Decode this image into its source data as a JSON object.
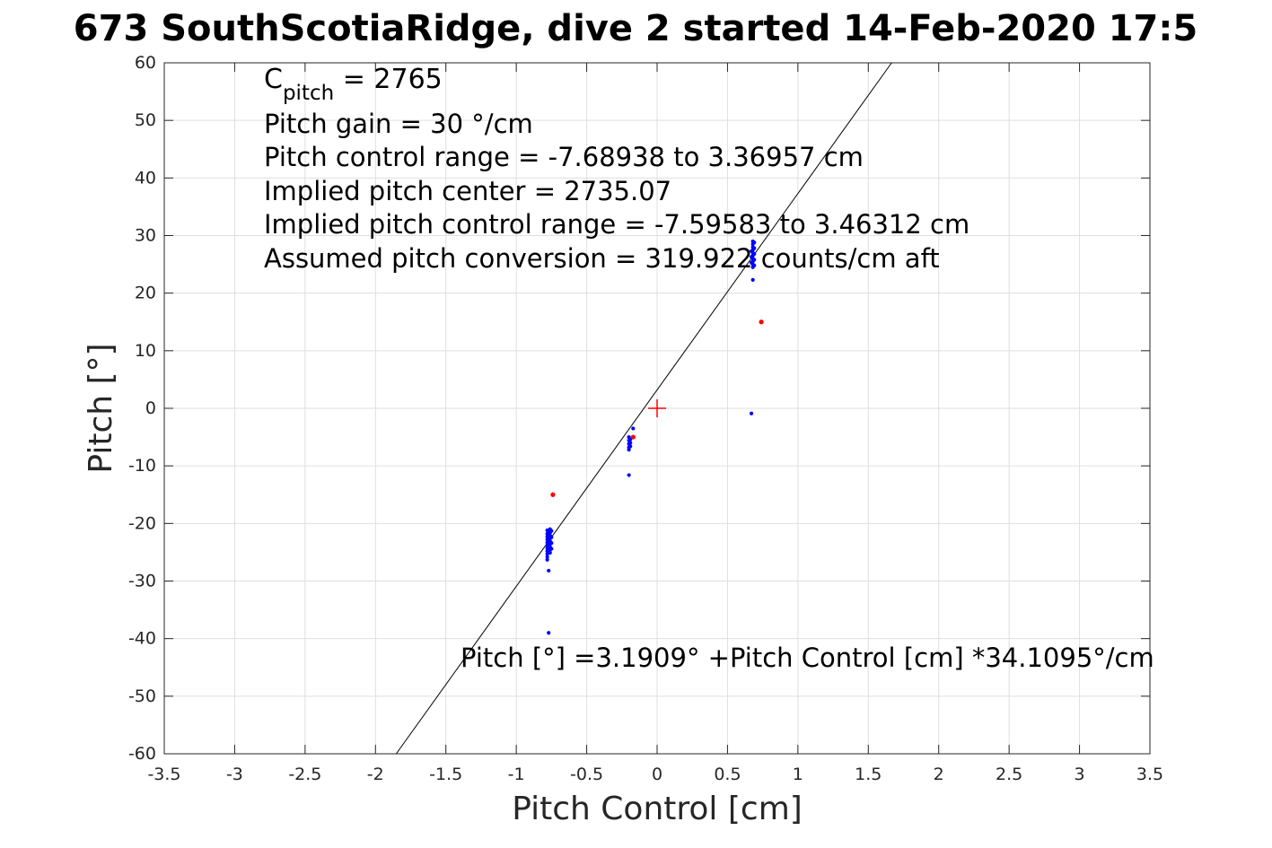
{
  "chart_data": {
    "type": "scatter",
    "title": "673 SouthScotiaRidge, dive 2 started 14-Feb-2020 17:5",
    "xlabel": "Pitch Control [cm]",
    "ylabel": "Pitch [°]",
    "xlim": [
      -3.5,
      3.5
    ],
    "ylim": [
      -60,
      60
    ],
    "xticks": [
      -3.5,
      -3,
      -2.5,
      -2,
      -1.5,
      -1,
      -0.5,
      0,
      0.5,
      1,
      1.5,
      2,
      2.5,
      3,
      3.5
    ],
    "xtick_labels": [
      "-3.5",
      "-3",
      "-2.5",
      "-2",
      "-1.5",
      "-1",
      "-0.5",
      "0",
      "0.5",
      "1",
      "1.5",
      "2",
      "2.5",
      "3",
      "3.5"
    ],
    "yticks": [
      -60,
      -50,
      -40,
      -30,
      -20,
      -10,
      0,
      10,
      20,
      30,
      40,
      50,
      60
    ],
    "ytick_labels": [
      "-60",
      "-50",
      "-40",
      "-30",
      "-20",
      "-10",
      "0",
      "10",
      "20",
      "30",
      "40",
      "50",
      "60"
    ],
    "grid": true,
    "annotations": {
      "c_pitch_main": "C",
      "c_pitch_sub": "pitch",
      "c_pitch_value": " = 2765",
      "line2": "Pitch gain = 30 °/cm",
      "line3": "Pitch control range = -7.68938 to 3.36957 cm",
      "line4": "Implied pitch center = 2735.07",
      "line5": "Implied pitch control range = -7.59583 to 3.46312 cm",
      "line6": "Assumed pitch conversion = 319.922 counts/cm aft",
      "fit_equation": "Pitch [°] =3.1909° +Pitch Control [cm] *34.1095°/cm"
    },
    "fit_line": {
      "intercept": 3.1909,
      "slope": 34.1095,
      "color": "#000000"
    },
    "center_marker": {
      "x": 0,
      "y": 0,
      "color": "#ff0000"
    },
    "series": [
      {
        "color": "#0000ff",
        "points": [
          [
            -0.78,
            -21.2
          ],
          [
            -0.78,
            -21.8
          ],
          [
            -0.78,
            -22.3
          ],
          [
            -0.78,
            -22.8
          ],
          [
            -0.78,
            -23.3
          ],
          [
            -0.78,
            -23.8
          ],
          [
            -0.78,
            -24.3
          ],
          [
            -0.78,
            -24.8
          ],
          [
            -0.78,
            -25.3
          ],
          [
            -0.78,
            -25.8
          ],
          [
            -0.78,
            -26.3
          ],
          [
            -0.76,
            -21.0
          ],
          [
            -0.76,
            -21.6
          ],
          [
            -0.76,
            -22.1
          ],
          [
            -0.76,
            -22.6
          ],
          [
            -0.76,
            -23.1
          ],
          [
            -0.76,
            -23.6
          ],
          [
            -0.76,
            -24.1
          ],
          [
            -0.76,
            -24.6
          ],
          [
            -0.76,
            -25.1
          ],
          [
            -0.77,
            -21.4
          ],
          [
            -0.77,
            -22.0
          ],
          [
            -0.77,
            -22.5
          ],
          [
            -0.77,
            -23.0
          ],
          [
            -0.77,
            -23.5
          ],
          [
            -0.77,
            -24.0
          ],
          [
            -0.77,
            -24.5
          ],
          [
            -0.77,
            -25.0
          ],
          [
            -0.75,
            -21.3
          ],
          [
            -0.75,
            -22.4
          ],
          [
            -0.75,
            -23.4
          ],
          [
            -0.75,
            -24.4
          ],
          [
            -0.77,
            -28.2
          ],
          [
            -0.77,
            -39.0
          ],
          [
            -0.2,
            -5.0
          ],
          [
            -0.2,
            -5.6
          ],
          [
            -0.2,
            -6.2
          ],
          [
            -0.2,
            -6.8
          ],
          [
            -0.2,
            -7.2
          ],
          [
            -0.19,
            -5.4
          ],
          [
            -0.19,
            -6.0
          ],
          [
            -0.19,
            -6.6
          ],
          [
            -0.17,
            -3.5
          ],
          [
            -0.2,
            -11.6
          ],
          [
            0.68,
            22.3
          ],
          [
            0.68,
            24.5
          ],
          [
            0.68,
            25.0
          ],
          [
            0.68,
            25.5
          ],
          [
            0.68,
            26.0
          ],
          [
            0.68,
            26.5
          ],
          [
            0.68,
            27.0
          ],
          [
            0.68,
            27.5
          ],
          [
            0.68,
            28.0
          ],
          [
            0.68,
            28.5
          ],
          [
            0.68,
            29.0
          ],
          [
            0.69,
            24.8
          ],
          [
            0.69,
            25.8
          ],
          [
            0.69,
            26.8
          ],
          [
            0.69,
            27.8
          ],
          [
            0.69,
            28.8
          ],
          [
            0.67,
            25.3
          ],
          [
            0.67,
            26.3
          ],
          [
            0.67,
            27.3
          ],
          [
            0.67,
            -0.9
          ]
        ]
      },
      {
        "color": "#ff0000",
        "points": [
          [
            -0.74,
            -15.0
          ],
          [
            -0.17,
            -5.0
          ],
          [
            0.74,
            15.0
          ]
        ]
      }
    ]
  }
}
